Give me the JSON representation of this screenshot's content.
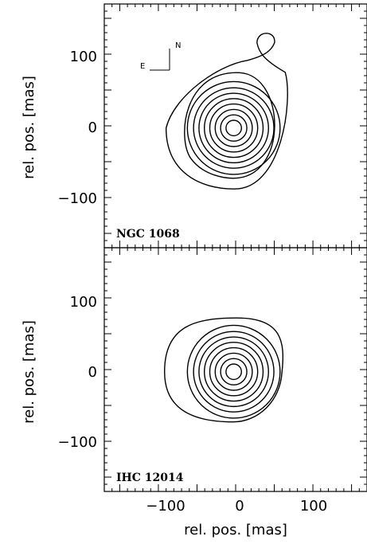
{
  "chart_data": {
    "type": "contour",
    "units": "mas",
    "xlim": [
      -170,
      170
    ],
    "ylim": [
      -170,
      170
    ],
    "x_ticks": [
      -100,
      0,
      100
    ],
    "y_ticks": [
      100,
      0,
      -100
    ],
    "x_tick_labels": [
      "−100",
      "0",
      "100"
    ],
    "y_tick_labels": [
      "100",
      "0",
      "−100"
    ],
    "xlabel": "rel. pos. [mas]",
    "ylabel": "rel. pos. [mas]",
    "compass": {
      "east": "E",
      "north": "N"
    },
    "panels": [
      {
        "label": "NGC 1068",
        "source": {
          "x": -3,
          "y": -3
        },
        "extension": {
          "x": 40,
          "y": 118
        },
        "outer_contour_extent": {
          "xmin": -90,
          "xmax": 60,
          "ymin": -88,
          "ymax": 135
        },
        "contour_radii": [
          10,
          17,
          24,
          31,
          38,
          45,
          52,
          60
        ]
      },
      {
        "label": "IHC 12014",
        "source": {
          "x": -3,
          "y": -3
        },
        "outer_contour_extent": {
          "xmin": -92,
          "xmax": 60,
          "ymin": -73,
          "ymax": 72
        },
        "contour_radii": [
          10,
          17,
          24,
          31,
          38,
          45,
          52,
          60
        ]
      }
    ]
  }
}
